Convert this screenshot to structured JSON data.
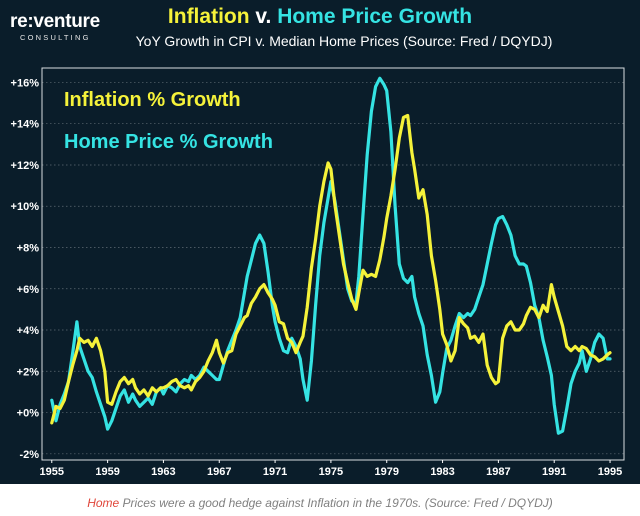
{
  "logo": {
    "brand": "re:venture",
    "sub": "CONSULTING"
  },
  "caption": {
    "highlight": "Home",
    "rest": " Prices were a good hedge against Inflation in the 1970s. (Source: Fred / DQYDJ)"
  },
  "colors": {
    "background": "#0a1d2a",
    "inflation": "#f5f23a",
    "home": "#35e3e3",
    "grid": "#ffffff"
  },
  "chart_data": {
    "type": "line",
    "title_parts": [
      {
        "text": "Inflation",
        "color": "#f5f23a"
      },
      {
        "text": " v. ",
        "color": "#ffffff"
      },
      {
        "text": "Home Price Growth",
        "color": "#35e3e3"
      }
    ],
    "subtitle": "YoY Growth in CPI v. Median Home Prices (Source: Fred / DQYDJ)",
    "xlabel": "",
    "ylabel": "",
    "xlim": [
      1954.3,
      1996.0
    ],
    "ylim": [
      -2.3,
      16.7
    ],
    "x_ticks": [
      1955,
      1959,
      1963,
      1967,
      1971,
      1975,
      1979,
      1983,
      1987,
      1991,
      1995
    ],
    "y_ticks": [
      {
        "value": -2,
        "label": "-2%"
      },
      {
        "value": 0,
        "label": "+0%"
      },
      {
        "value": 2,
        "label": "+2%"
      },
      {
        "value": 4,
        "label": "+4%"
      },
      {
        "value": 6,
        "label": "+6%"
      },
      {
        "value": 8,
        "label": "+8%"
      },
      {
        "value": 10,
        "label": "+10%"
      },
      {
        "value": 12,
        "label": "+12%"
      },
      {
        "value": 14,
        "label": "+14%"
      },
      {
        "value": 16,
        "label": "+16%"
      }
    ],
    "grid": true,
    "legend_position": "top-left",
    "series": [
      {
        "name": "Inflation % Growth",
        "color": "#f5f23a",
        "points": [
          [
            1955.0,
            -0.5
          ],
          [
            1955.3,
            0.3
          ],
          [
            1955.6,
            0.2
          ],
          [
            1955.9,
            0.6
          ],
          [
            1956.2,
            1.5
          ],
          [
            1956.5,
            2.3
          ],
          [
            1956.8,
            3.0
          ],
          [
            1957.0,
            3.6
          ],
          [
            1957.3,
            3.4
          ],
          [
            1957.6,
            3.5
          ],
          [
            1957.9,
            3.2
          ],
          [
            1958.2,
            3.6
          ],
          [
            1958.5,
            3.0
          ],
          [
            1958.8,
            2.0
          ],
          [
            1959.0,
            0.5
          ],
          [
            1959.3,
            0.4
          ],
          [
            1959.6,
            1.0
          ],
          [
            1959.9,
            1.5
          ],
          [
            1960.2,
            1.7
          ],
          [
            1960.5,
            1.4
          ],
          [
            1960.8,
            1.6
          ],
          [
            1961.0,
            1.2
          ],
          [
            1961.3,
            0.9
          ],
          [
            1961.6,
            1.1
          ],
          [
            1961.9,
            0.8
          ],
          [
            1962.2,
            1.2
          ],
          [
            1962.5,
            1.0
          ],
          [
            1962.8,
            1.2
          ],
          [
            1963.0,
            1.2
          ],
          [
            1963.3,
            1.3
          ],
          [
            1963.6,
            1.5
          ],
          [
            1963.9,
            1.6
          ],
          [
            1964.2,
            1.3
          ],
          [
            1964.5,
            1.2
          ],
          [
            1964.8,
            1.3
          ],
          [
            1965.0,
            1.1
          ],
          [
            1965.3,
            1.5
          ],
          [
            1965.6,
            1.7
          ],
          [
            1965.9,
            2.0
          ],
          [
            1966.2,
            2.5
          ],
          [
            1966.5,
            2.9
          ],
          [
            1966.8,
            3.5
          ],
          [
            1967.0,
            2.9
          ],
          [
            1967.3,
            2.4
          ],
          [
            1967.6,
            2.9
          ],
          [
            1967.9,
            3.0
          ],
          [
            1968.2,
            3.8
          ],
          [
            1968.5,
            4.2
          ],
          [
            1968.8,
            4.6
          ],
          [
            1969.0,
            4.7
          ],
          [
            1969.3,
            5.3
          ],
          [
            1969.6,
            5.6
          ],
          [
            1969.9,
            6.0
          ],
          [
            1970.2,
            6.2
          ],
          [
            1970.5,
            5.8
          ],
          [
            1970.8,
            5.5
          ],
          [
            1971.0,
            5.2
          ],
          [
            1971.3,
            4.4
          ],
          [
            1971.6,
            4.3
          ],
          [
            1971.9,
            3.6
          ],
          [
            1972.2,
            3.4
          ],
          [
            1972.5,
            2.9
          ],
          [
            1972.8,
            3.4
          ],
          [
            1973.0,
            3.7
          ],
          [
            1973.3,
            5.1
          ],
          [
            1973.6,
            7.0
          ],
          [
            1973.9,
            8.4
          ],
          [
            1974.2,
            10.0
          ],
          [
            1974.5,
            11.2
          ],
          [
            1974.8,
            12.1
          ],
          [
            1975.0,
            11.8
          ],
          [
            1975.3,
            10.0
          ],
          [
            1975.6,
            8.6
          ],
          [
            1975.9,
            7.2
          ],
          [
            1976.2,
            6.3
          ],
          [
            1976.5,
            5.5
          ],
          [
            1976.8,
            5.0
          ],
          [
            1977.0,
            5.8
          ],
          [
            1977.3,
            6.9
          ],
          [
            1977.6,
            6.6
          ],
          [
            1977.9,
            6.7
          ],
          [
            1978.2,
            6.6
          ],
          [
            1978.5,
            7.4
          ],
          [
            1978.8,
            8.5
          ],
          [
            1979.0,
            9.4
          ],
          [
            1979.3,
            10.5
          ],
          [
            1979.6,
            11.8
          ],
          [
            1979.9,
            13.3
          ],
          [
            1980.2,
            14.3
          ],
          [
            1980.5,
            14.4
          ],
          [
            1980.8,
            12.6
          ],
          [
            1981.0,
            11.8
          ],
          [
            1981.3,
            10.4
          ],
          [
            1981.6,
            10.8
          ],
          [
            1981.9,
            9.6
          ],
          [
            1982.2,
            7.6
          ],
          [
            1982.5,
            6.4
          ],
          [
            1982.8,
            5.0
          ],
          [
            1983.0,
            3.8
          ],
          [
            1983.3,
            3.3
          ],
          [
            1983.6,
            2.5
          ],
          [
            1983.9,
            3.0
          ],
          [
            1984.2,
            4.6
          ],
          [
            1984.5,
            4.3
          ],
          [
            1984.8,
            4.1
          ],
          [
            1985.0,
            3.6
          ],
          [
            1985.3,
            3.7
          ],
          [
            1985.6,
            3.4
          ],
          [
            1985.9,
            3.8
          ],
          [
            1986.2,
            2.3
          ],
          [
            1986.5,
            1.7
          ],
          [
            1986.8,
            1.4
          ],
          [
            1987.0,
            1.5
          ],
          [
            1987.3,
            3.6
          ],
          [
            1987.6,
            4.2
          ],
          [
            1987.9,
            4.4
          ],
          [
            1988.2,
            4.0
          ],
          [
            1988.5,
            4.0
          ],
          [
            1988.8,
            4.3
          ],
          [
            1989.0,
            4.7
          ],
          [
            1989.3,
            5.1
          ],
          [
            1989.6,
            5.0
          ],
          [
            1989.9,
            4.6
          ],
          [
            1990.2,
            5.2
          ],
          [
            1990.5,
            4.9
          ],
          [
            1990.8,
            6.2
          ],
          [
            1991.0,
            5.6
          ],
          [
            1991.3,
            4.9
          ],
          [
            1991.6,
            4.2
          ],
          [
            1991.9,
            3.2
          ],
          [
            1992.2,
            3.0
          ],
          [
            1992.5,
            3.2
          ],
          [
            1992.8,
            3.0
          ],
          [
            1993.0,
            3.2
          ],
          [
            1993.3,
            3.1
          ],
          [
            1993.6,
            2.8
          ],
          [
            1993.9,
            2.7
          ],
          [
            1994.2,
            2.5
          ],
          [
            1994.5,
            2.6
          ],
          [
            1994.8,
            2.8
          ],
          [
            1995.0,
            2.9
          ]
        ]
      },
      {
        "name": "Home Price % Growth",
        "color": "#35e3e3",
        "points": [
          [
            1955.0,
            0.6
          ],
          [
            1955.3,
            -0.4
          ],
          [
            1955.6,
            0.4
          ],
          [
            1955.9,
            0.9
          ],
          [
            1956.2,
            1.5
          ],
          [
            1956.5,
            2.9
          ],
          [
            1956.8,
            4.4
          ],
          [
            1957.0,
            3.2
          ],
          [
            1957.3,
            2.6
          ],
          [
            1957.6,
            2.0
          ],
          [
            1957.9,
            1.7
          ],
          [
            1958.2,
            1.0
          ],
          [
            1958.5,
            0.4
          ],
          [
            1958.8,
            -0.2
          ],
          [
            1959.0,
            -0.8
          ],
          [
            1959.3,
            -0.4
          ],
          [
            1959.6,
            0.2
          ],
          [
            1959.9,
            0.8
          ],
          [
            1960.2,
            1.1
          ],
          [
            1960.5,
            0.5
          ],
          [
            1960.8,
            0.9
          ],
          [
            1961.0,
            0.6
          ],
          [
            1961.3,
            0.3
          ],
          [
            1961.6,
            0.5
          ],
          [
            1961.9,
            0.7
          ],
          [
            1962.2,
            0.4
          ],
          [
            1962.5,
            1.0
          ],
          [
            1962.8,
            1.2
          ],
          [
            1963.0,
            0.9
          ],
          [
            1963.3,
            1.3
          ],
          [
            1963.6,
            1.2
          ],
          [
            1963.9,
            1.0
          ],
          [
            1964.2,
            1.4
          ],
          [
            1964.5,
            1.6
          ],
          [
            1964.8,
            1.5
          ],
          [
            1965.0,
            1.8
          ],
          [
            1965.3,
            1.6
          ],
          [
            1965.6,
            1.8
          ],
          [
            1965.9,
            2.2
          ],
          [
            1966.2,
            2.0
          ],
          [
            1966.5,
            1.8
          ],
          [
            1966.8,
            1.6
          ],
          [
            1967.0,
            1.6
          ],
          [
            1967.3,
            2.3
          ],
          [
            1967.6,
            3.0
          ],
          [
            1967.9,
            3.5
          ],
          [
            1968.2,
            4.0
          ],
          [
            1968.5,
            4.6
          ],
          [
            1968.8,
            5.8
          ],
          [
            1969.0,
            6.6
          ],
          [
            1969.3,
            7.4
          ],
          [
            1969.6,
            8.2
          ],
          [
            1969.9,
            8.6
          ],
          [
            1970.2,
            8.2
          ],
          [
            1970.5,
            6.8
          ],
          [
            1970.8,
            5.2
          ],
          [
            1971.0,
            4.4
          ],
          [
            1971.3,
            3.6
          ],
          [
            1971.6,
            3.0
          ],
          [
            1971.9,
            2.9
          ],
          [
            1972.2,
            3.6
          ],
          [
            1972.5,
            3.2
          ],
          [
            1972.8,
            2.6
          ],
          [
            1973.0,
            1.6
          ],
          [
            1973.3,
            0.6
          ],
          [
            1973.6,
            2.5
          ],
          [
            1973.9,
            5.2
          ],
          [
            1974.2,
            7.6
          ],
          [
            1974.5,
            9.2
          ],
          [
            1974.8,
            10.4
          ],
          [
            1975.0,
            11.2
          ],
          [
            1975.3,
            10.2
          ],
          [
            1975.6,
            8.8
          ],
          [
            1975.9,
            7.4
          ],
          [
            1976.2,
            6.0
          ],
          [
            1976.5,
            5.4
          ],
          [
            1976.8,
            5.3
          ],
          [
            1977.0,
            6.6
          ],
          [
            1977.3,
            9.6
          ],
          [
            1977.6,
            12.5
          ],
          [
            1977.9,
            14.6
          ],
          [
            1978.2,
            15.8
          ],
          [
            1978.5,
            16.2
          ],
          [
            1978.8,
            15.9
          ],
          [
            1979.0,
            15.6
          ],
          [
            1979.3,
            13.6
          ],
          [
            1979.6,
            10.0
          ],
          [
            1979.9,
            7.2
          ],
          [
            1980.2,
            6.5
          ],
          [
            1980.5,
            6.3
          ],
          [
            1980.8,
            6.6
          ],
          [
            1981.0,
            5.6
          ],
          [
            1981.3,
            4.8
          ],
          [
            1981.6,
            4.2
          ],
          [
            1981.9,
            2.8
          ],
          [
            1982.2,
            1.8
          ],
          [
            1982.5,
            0.5
          ],
          [
            1982.8,
            1.0
          ],
          [
            1983.0,
            1.9
          ],
          [
            1983.3,
            3.1
          ],
          [
            1983.6,
            3.5
          ],
          [
            1983.9,
            4.2
          ],
          [
            1984.2,
            4.8
          ],
          [
            1984.5,
            4.6
          ],
          [
            1984.8,
            4.8
          ],
          [
            1985.0,
            4.7
          ],
          [
            1985.3,
            5.0
          ],
          [
            1985.6,
            5.6
          ],
          [
            1985.9,
            6.2
          ],
          [
            1986.2,
            7.2
          ],
          [
            1986.5,
            8.2
          ],
          [
            1986.8,
            9.1
          ],
          [
            1987.0,
            9.4
          ],
          [
            1987.3,
            9.5
          ],
          [
            1987.6,
            9.1
          ],
          [
            1987.9,
            8.6
          ],
          [
            1988.2,
            7.6
          ],
          [
            1988.5,
            7.2
          ],
          [
            1988.8,
            7.2
          ],
          [
            1989.0,
            7.1
          ],
          [
            1989.3,
            6.3
          ],
          [
            1989.6,
            5.2
          ],
          [
            1989.9,
            4.6
          ],
          [
            1990.2,
            3.5
          ],
          [
            1990.5,
            2.7
          ],
          [
            1990.8,
            1.8
          ],
          [
            1991.0,
            0.4
          ],
          [
            1991.3,
            -1.0
          ],
          [
            1991.6,
            -0.9
          ],
          [
            1991.9,
            0.2
          ],
          [
            1992.2,
            1.4
          ],
          [
            1992.5,
            2.0
          ],
          [
            1992.8,
            2.4
          ],
          [
            1993.0,
            3.0
          ],
          [
            1993.3,
            2.0
          ],
          [
            1993.6,
            2.6
          ],
          [
            1993.9,
            3.4
          ],
          [
            1994.2,
            3.8
          ],
          [
            1994.5,
            3.6
          ],
          [
            1994.8,
            2.6
          ],
          [
            1995.0,
            2.6
          ]
        ]
      }
    ]
  }
}
